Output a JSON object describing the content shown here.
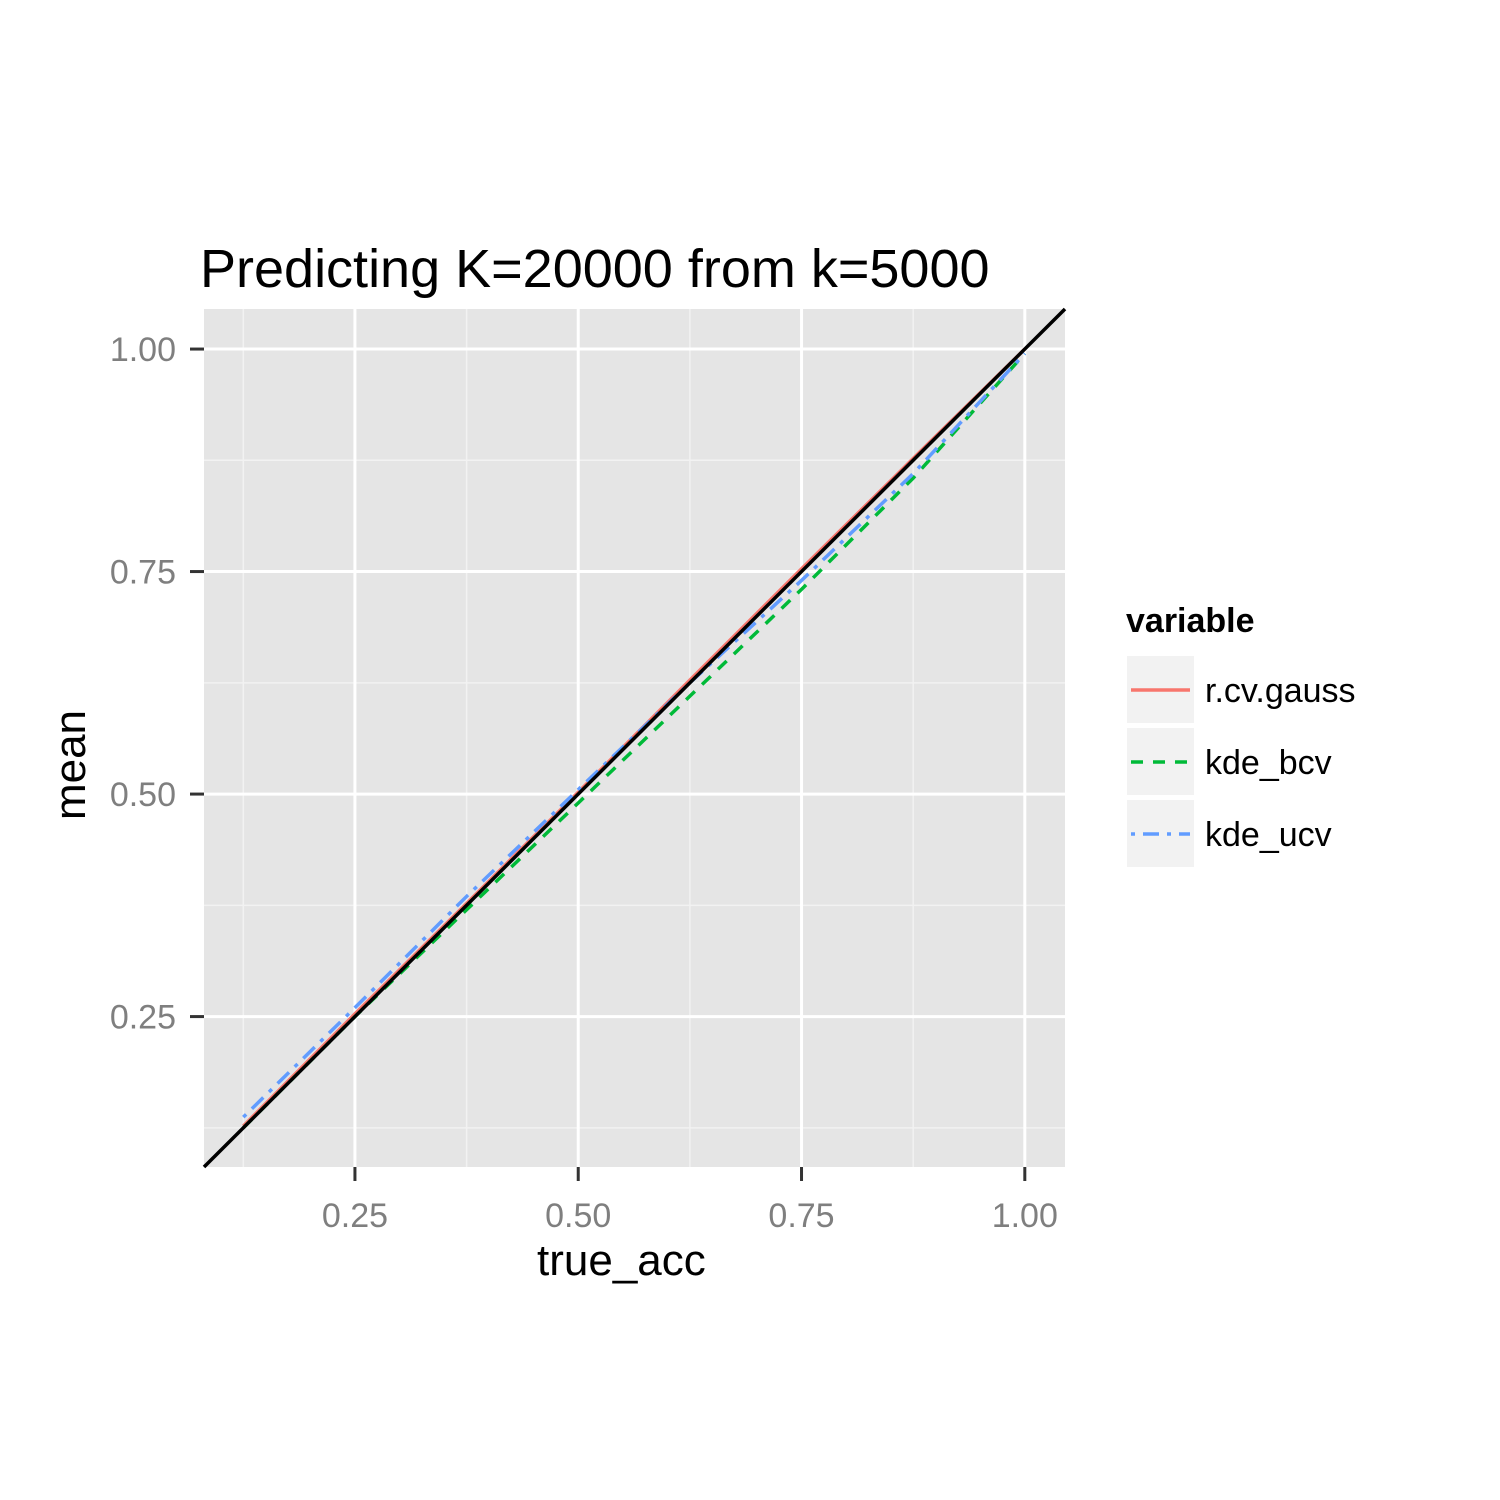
{
  "chart_data": {
    "type": "line",
    "title": "Predicting K=20000 from k=5000",
    "xlabel": "true_acc",
    "ylabel": "mean",
    "xlim": [
      0.081,
      1.045
    ],
    "ylim": [
      0.081,
      1.045
    ],
    "xticks": [
      0.25,
      0.5,
      0.75,
      1.0
    ],
    "yticks": [
      0.25,
      0.5,
      0.75,
      1.0
    ],
    "xtick_labels": [
      "0.25",
      "0.50",
      "0.75",
      "1.00"
    ],
    "ytick_labels": [
      "0.25",
      "0.50",
      "0.75",
      "1.00"
    ],
    "grid": true,
    "legend": {
      "title": "variable",
      "placement": "right",
      "entries": [
        "r.cv.gauss",
        "kde_bcv",
        "kde_ucv"
      ]
    },
    "reference_line": {
      "slope": 1,
      "intercept": 0,
      "color": "#000000"
    },
    "series": [
      {
        "name": "r.cv.gauss",
        "color": "#F8766D",
        "dash": "solid",
        "x": [
          0.125,
          0.25,
          0.375,
          0.5,
          0.625,
          0.75,
          0.875,
          1.0
        ],
        "y": [
          0.127,
          0.253,
          0.377,
          0.502,
          0.628,
          0.753,
          0.877,
          1.0
        ]
      },
      {
        "name": "kde_bcv",
        "color": "#00BA38",
        "dash": "dashed",
        "x": [
          0.125,
          0.25,
          0.375,
          0.5,
          0.625,
          0.75,
          0.875,
          1.0
        ],
        "y": [
          0.125,
          0.25,
          0.37,
          0.49,
          0.61,
          0.73,
          0.855,
          0.995
        ]
      },
      {
        "name": "kde_ucv",
        "color": "#619CFF",
        "dash": "dotdash",
        "x": [
          0.125,
          0.25,
          0.375,
          0.5,
          0.625,
          0.75,
          0.875,
          1.0
        ],
        "y": [
          0.137,
          0.26,
          0.385,
          0.505,
          0.625,
          0.74,
          0.86,
          0.995
        ]
      }
    ]
  }
}
